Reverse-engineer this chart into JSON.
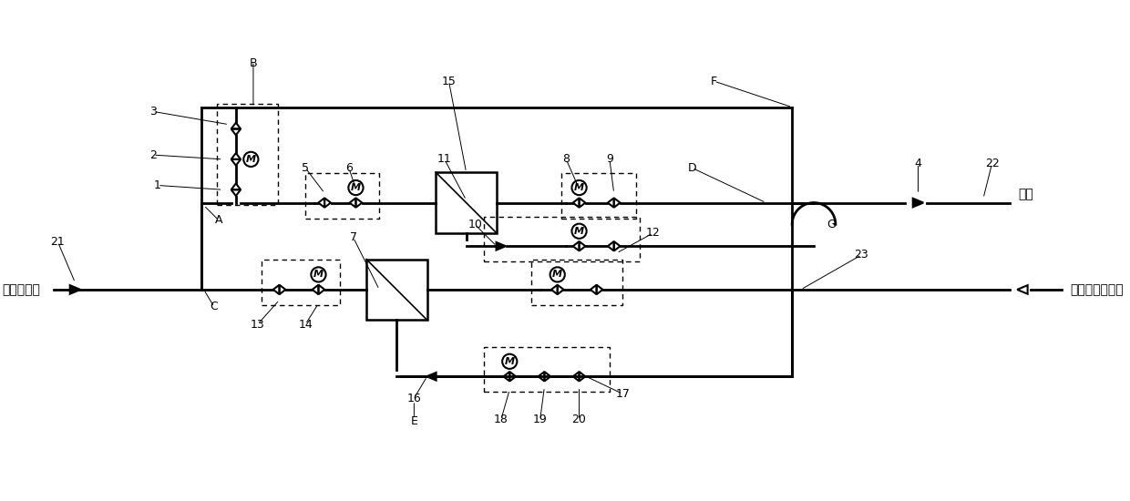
{
  "bg_color": "#ffffff",
  "figsize": [
    12.4,
    5.5
  ],
  "dpi": 100,
  "xlim": [
    0,
    124
  ],
  "ylim": [
    0,
    55
  ]
}
